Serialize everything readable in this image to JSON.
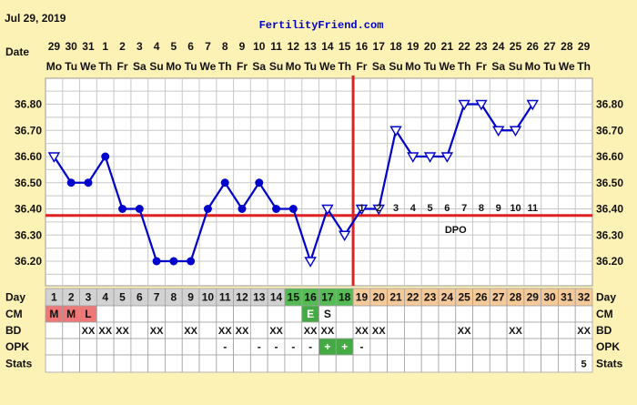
{
  "header": {
    "date": "Jul 29, 2019",
    "site": "FertilityFriend.com"
  },
  "row_labels": {
    "date": "Date",
    "day": "Day",
    "cm": "CM",
    "bd": "BD",
    "opk": "OPK",
    "stats": "Stats"
  },
  "chart_data": {
    "type": "line",
    "title": "",
    "dates": [
      "29",
      "30",
      "31",
      "1",
      "2",
      "3",
      "4",
      "5",
      "6",
      "7",
      "8",
      "9",
      "10",
      "11",
      "12",
      "13",
      "14",
      "15",
      "16",
      "17",
      "18",
      "19",
      "20",
      "21",
      "22",
      "23",
      "24",
      "25",
      "26",
      "27",
      "28",
      "29"
    ],
    "weekdays": [
      "Mo",
      "Tu",
      "We",
      "Th",
      "Fr",
      "Sa",
      "Su",
      "Mo",
      "Tu",
      "We",
      "Th",
      "Fr",
      "Sa",
      "Su",
      "Mo",
      "Tu",
      "We",
      "Th",
      "Fr",
      "Sa",
      "Su",
      "Mo",
      "Tu",
      "We",
      "Th",
      "Fr",
      "Sa",
      "Su",
      "Mo",
      "Tu",
      "We",
      "Th"
    ],
    "cycle_days": [
      1,
      2,
      3,
      4,
      5,
      6,
      7,
      8,
      9,
      10,
      11,
      12,
      13,
      14,
      15,
      16,
      17,
      18,
      19,
      20,
      21,
      22,
      23,
      24,
      25,
      26,
      27,
      28,
      29,
      30,
      31,
      32
    ],
    "temperatures": [
      36.6,
      36.5,
      36.5,
      36.6,
      36.4,
      36.4,
      36.2,
      36.2,
      36.2,
      36.4,
      36.5,
      36.4,
      36.5,
      36.4,
      36.4,
      36.2,
      36.4,
      36.3,
      36.4,
      36.4,
      36.7,
      36.6,
      36.6,
      36.6,
      36.8,
      36.8,
      36.7,
      36.7,
      36.8,
      null,
      null,
      null
    ],
    "open_markers": [
      1,
      16,
      17,
      18,
      19,
      20,
      21,
      22,
      23,
      24,
      25,
      26,
      27,
      28,
      29
    ],
    "y_ticks": [
      36.2,
      36.3,
      36.4,
      36.5,
      36.6,
      36.7,
      36.8
    ],
    "y_range": [
      36.1,
      36.9
    ],
    "coverline": 36.375,
    "ovulation_day": 18,
    "dpo_label": "DPO",
    "dpo_numbers": [
      1,
      2,
      3,
      4,
      5,
      6,
      7,
      8,
      9,
      10,
      11
    ],
    "cm": [
      "M",
      "M",
      "L",
      "",
      "",
      "",
      "",
      "",
      "",
      "",
      "",
      "",
      "",
      "",
      "",
      "E",
      "S",
      "",
      "",
      "",
      "",
      "",
      "",
      "",
      "",
      "",
      "",
      "",
      "",
      "",
      "",
      ""
    ],
    "bd": [
      "",
      "",
      "XX",
      "XX",
      "XX",
      "",
      "XX",
      "",
      "XX",
      "",
      "XX",
      "XX",
      "",
      "XX",
      "",
      "XX",
      "XX",
      "",
      "XX",
      "XX",
      "",
      "",
      "",
      "",
      "XX",
      "",
      "",
      "XX",
      "",
      "",
      "",
      "XX"
    ],
    "opk": [
      "",
      "",
      "",
      "",
      "",
      "",
      "",
      "",
      "",
      "",
      "-",
      "",
      "-",
      "-",
      "-",
      "-",
      "+",
      "+",
      "-",
      "",
      "",
      "",
      "",
      "",
      "",
      "",
      "",
      "",
      "",
      "",
      "",
      ""
    ],
    "stats": [
      "",
      "",
      "",
      "",
      "",
      "",
      "",
      "",
      "",
      "",
      "",
      "",
      "",
      "",
      "",
      "",
      "",
      "",
      "",
      "",
      "",
      "",
      "",
      "",
      "",
      "",
      "",
      "",
      "",
      "",
      "",
      "5"
    ],
    "colors": {
      "line": "#0000cc",
      "coverline": "#dd2222",
      "ovulation_line": "#dd2222",
      "day_cell": "#d2d2d2",
      "day_cell_fertile": "#55bb55",
      "day_cell_luteal": "#f5c998",
      "cm_menses": "#ee7777",
      "cm_fertile": "#44aa44",
      "opk_positive": "#44aa44"
    }
  }
}
